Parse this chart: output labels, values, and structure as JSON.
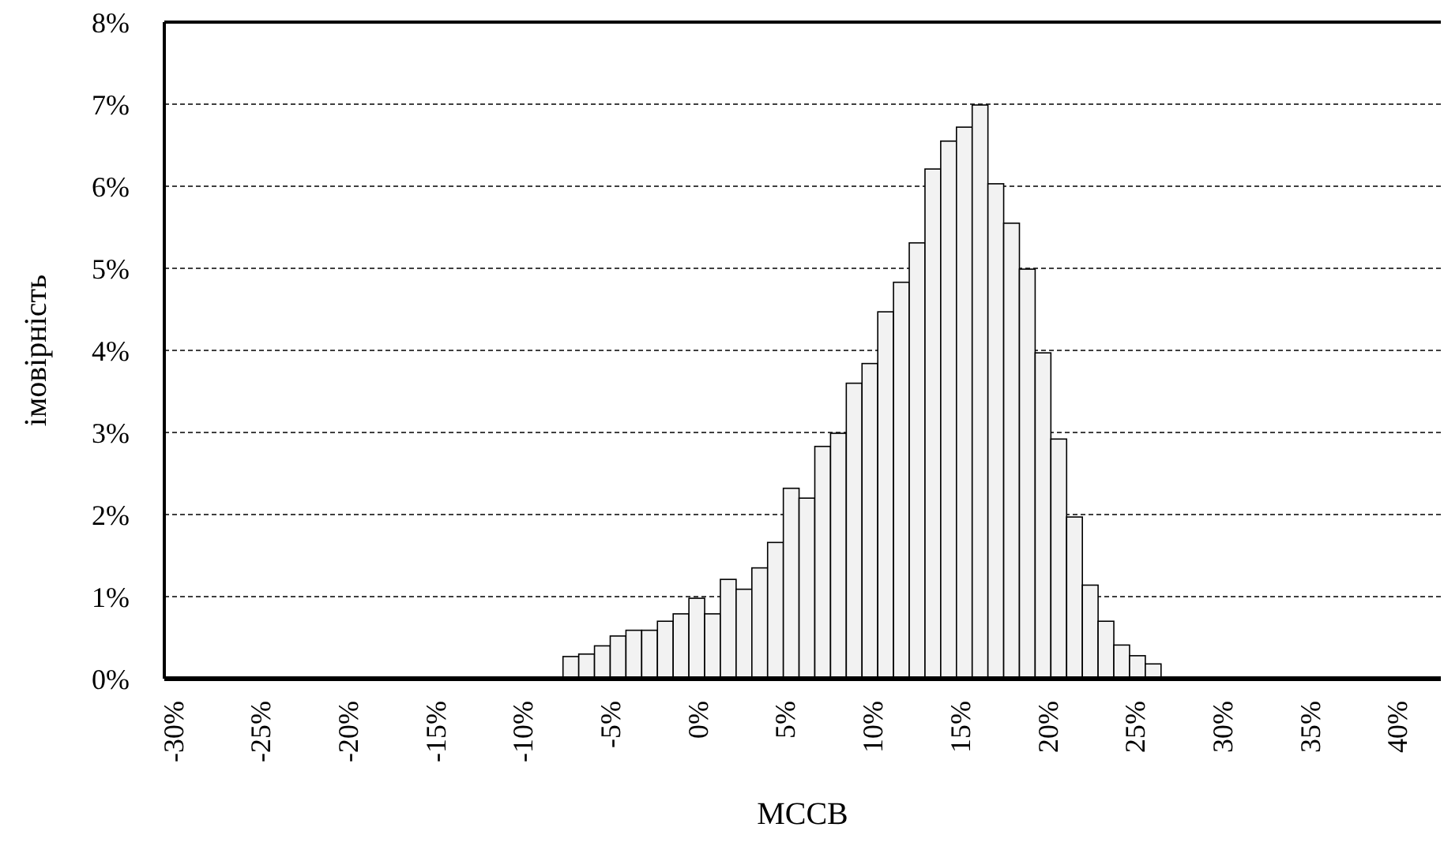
{
  "chart_data": {
    "type": "histogram",
    "xlabel": "МССВ",
    "ylabel": "імовірність",
    "bins": [
      -7.7,
      -6.8,
      -5.9,
      -5.0,
      -4.1,
      -3.2,
      -2.3,
      -1.4,
      -0.5,
      0.4,
      1.3,
      2.2,
      3.1,
      4.0,
      4.9,
      5.8,
      6.7,
      7.6,
      8.5,
      9.4,
      10.3,
      11.2,
      12.1,
      13.0,
      13.9,
      14.8,
      15.7,
      16.6,
      17.5,
      18.4,
      19.3,
      20.2,
      21.1,
      22.0,
      22.9,
      23.8,
      24.7,
      25.6,
      26.5
    ],
    "values": [
      0.27,
      0.3,
      0.4,
      0.52,
      0.59,
      0.59,
      0.7,
      0.79,
      0.98,
      0.79,
      1.21,
      1.09,
      1.35,
      1.66,
      2.32,
      2.2,
      2.83,
      2.99,
      3.6,
      3.84,
      4.47,
      4.83,
      5.31,
      6.21,
      6.55,
      6.72,
      6.99,
      6.03,
      5.55,
      4.99,
      3.97,
      2.92,
      1.97,
      1.14,
      0.7,
      0.41,
      0.28,
      0.18
    ],
    "color": "#f2f2f2",
    "xlim": [
      -30.5,
      42.5
    ],
    "xticks": [
      {
        "value": -30,
        "label": "-30%"
      },
      {
        "value": -25,
        "label": "-25%"
      },
      {
        "value": -20,
        "label": "-20%"
      },
      {
        "value": -15,
        "label": "-15%"
      },
      {
        "value": -10,
        "label": "-10%"
      },
      {
        "value": -5,
        "label": "-5%"
      },
      {
        "value": 0,
        "label": "0%"
      },
      {
        "value": 5,
        "label": "5%"
      },
      {
        "value": 10,
        "label": "10%"
      },
      {
        "value": 15,
        "label": "15%"
      },
      {
        "value": 20,
        "label": "20%"
      },
      {
        "value": 25,
        "label": "25%"
      },
      {
        "value": 30,
        "label": "30%"
      },
      {
        "value": 35,
        "label": "35%"
      },
      {
        "value": 40,
        "label": "40%"
      }
    ],
    "ylim": [
      0,
      8
    ],
    "yticks": [
      {
        "value": 0,
        "label": "0%"
      },
      {
        "value": 1,
        "label": "1%"
      },
      {
        "value": 2,
        "label": "2%"
      },
      {
        "value": 3,
        "label": "3%"
      },
      {
        "value": 4,
        "label": "4%"
      },
      {
        "value": 5,
        "label": "5%"
      },
      {
        "value": 6,
        "label": "6%"
      },
      {
        "value": 7,
        "label": "7%"
      },
      {
        "value": 8,
        "label": "8%"
      }
    ],
    "grid": "y"
  }
}
